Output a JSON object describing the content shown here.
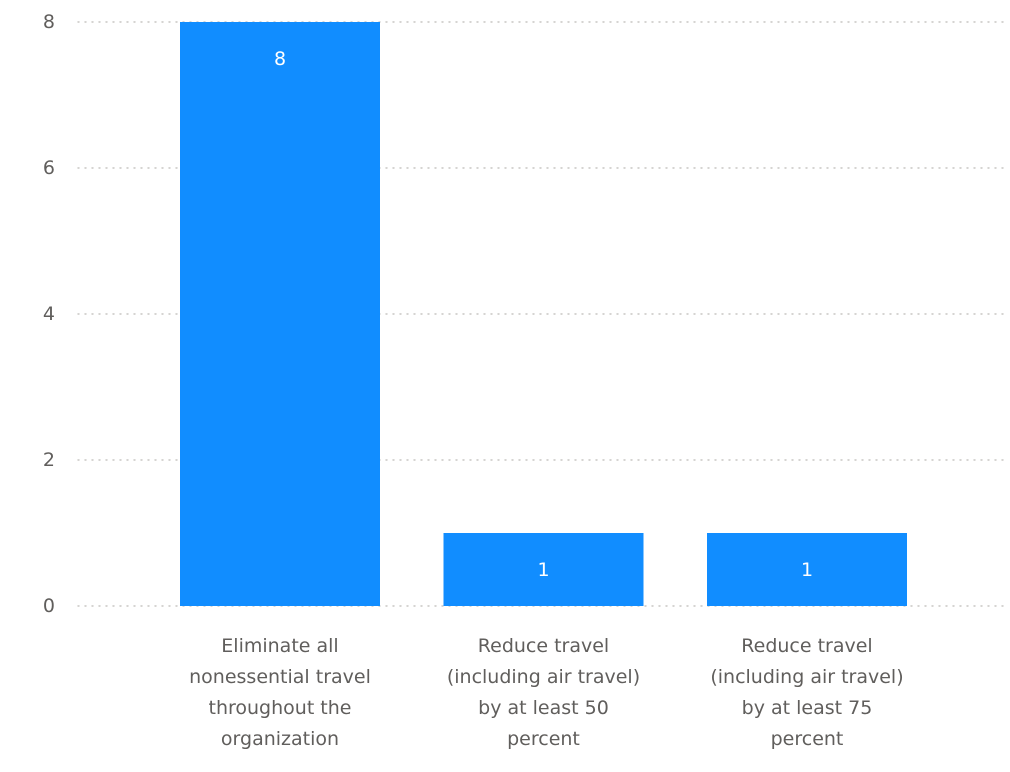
{
  "chart_data": {
    "type": "bar",
    "categories": [
      "Eliminate all nonessential travel throughout the organization",
      "Reduce travel (including air travel) by at least 50 percent",
      "Reduce travel (including air travel) by at least 75 percent"
    ],
    "category_lines": [
      [
        "Eliminate all",
        "nonessential travel",
        "throughout the",
        "organization"
      ],
      [
        "Reduce travel",
        "(including air travel)",
        "by at least 50",
        "percent"
      ],
      [
        "Reduce travel",
        "(including air travel)",
        "by at least 75",
        "percent"
      ]
    ],
    "values": [
      8,
      1,
      1
    ],
    "data_labels": [
      "8",
      "1",
      "1"
    ],
    "ylim": [
      0,
      8
    ],
    "yticks": [
      0,
      2,
      4,
      6,
      8
    ],
    "ytick_labels": [
      "0",
      "2",
      "4",
      "6",
      "8"
    ],
    "grid": true,
    "bar_color": "#118DFF",
    "title": "",
    "xlabel": "",
    "ylabel": ""
  }
}
